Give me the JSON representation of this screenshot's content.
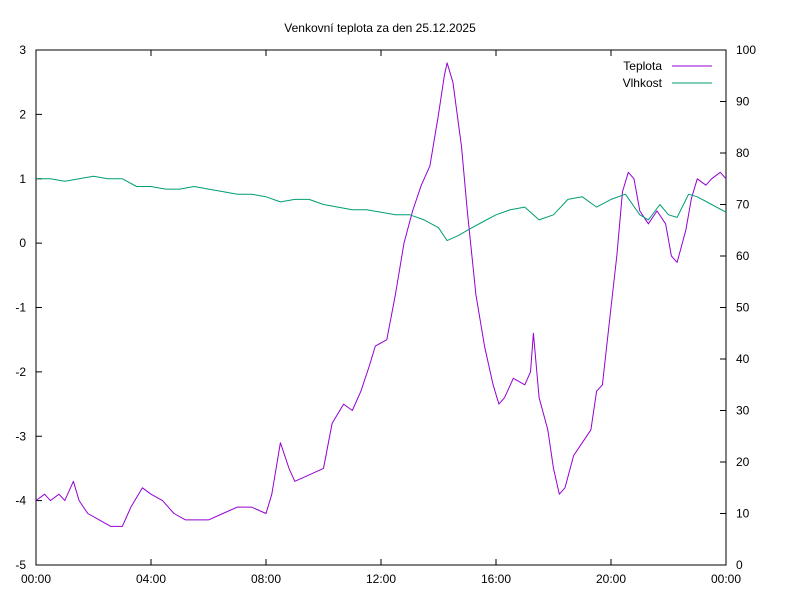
{
  "chart_data": {
    "type": "line",
    "title": "Venkovní teplota za den 25.12.2025",
    "x_ticks": [
      "00:00",
      "04:00",
      "08:00",
      "12:00",
      "16:00",
      "20:00",
      "00:00"
    ],
    "x_range_hours": [
      0,
      24
    ],
    "y_left": {
      "range": [
        -5,
        3
      ],
      "ticks": [
        "3",
        "2",
        "1",
        "0",
        "-1",
        "-2",
        "-3",
        "-4",
        "-5"
      ]
    },
    "y_right": {
      "range": [
        0,
        100
      ],
      "ticks": [
        "100",
        "90",
        "80",
        "70",
        "60",
        "50",
        "40",
        "30",
        "20",
        "10",
        "0"
      ]
    },
    "legend_position": "top-right",
    "grid": false,
    "series": [
      {
        "name": "Teplota",
        "axis": "left",
        "color": "#9400d3",
        "points": [
          [
            0.0,
            -4.0
          ],
          [
            0.3,
            -3.9
          ],
          [
            0.5,
            -4.0
          ],
          [
            0.8,
            -3.9
          ],
          [
            1.0,
            -4.0
          ],
          [
            1.3,
            -3.7
          ],
          [
            1.5,
            -4.0
          ],
          [
            1.8,
            -4.2
          ],
          [
            2.2,
            -4.3
          ],
          [
            2.6,
            -4.4
          ],
          [
            3.0,
            -4.4
          ],
          [
            3.3,
            -4.1
          ],
          [
            3.7,
            -3.8
          ],
          [
            4.0,
            -3.9
          ],
          [
            4.4,
            -4.0
          ],
          [
            4.8,
            -4.2
          ],
          [
            5.2,
            -4.3
          ],
          [
            5.6,
            -4.3
          ],
          [
            6.0,
            -4.3
          ],
          [
            6.5,
            -4.2
          ],
          [
            7.0,
            -4.1
          ],
          [
            7.5,
            -4.1
          ],
          [
            8.0,
            -4.2
          ],
          [
            8.2,
            -3.9
          ],
          [
            8.5,
            -3.1
          ],
          [
            8.8,
            -3.5
          ],
          [
            9.0,
            -3.7
          ],
          [
            9.5,
            -3.6
          ],
          [
            10.0,
            -3.5
          ],
          [
            10.3,
            -2.8
          ],
          [
            10.7,
            -2.5
          ],
          [
            11.0,
            -2.6
          ],
          [
            11.3,
            -2.3
          ],
          [
            11.6,
            -1.9
          ],
          [
            11.8,
            -1.6
          ],
          [
            12.2,
            -1.5
          ],
          [
            12.5,
            -0.8
          ],
          [
            12.8,
            0.0
          ],
          [
            13.1,
            0.5
          ],
          [
            13.4,
            0.9
          ],
          [
            13.7,
            1.2
          ],
          [
            14.0,
            2.0
          ],
          [
            14.2,
            2.6
          ],
          [
            14.3,
            2.8
          ],
          [
            14.5,
            2.5
          ],
          [
            14.8,
            1.5
          ],
          [
            15.0,
            0.5
          ],
          [
            15.3,
            -0.8
          ],
          [
            15.6,
            -1.6
          ],
          [
            15.9,
            -2.2
          ],
          [
            16.1,
            -2.5
          ],
          [
            16.3,
            -2.4
          ],
          [
            16.6,
            -2.1
          ],
          [
            17.0,
            -2.2
          ],
          [
            17.2,
            -2.0
          ],
          [
            17.3,
            -1.4
          ],
          [
            17.5,
            -2.4
          ],
          [
            17.8,
            -2.9
          ],
          [
            18.0,
            -3.5
          ],
          [
            18.2,
            -3.9
          ],
          [
            18.4,
            -3.8
          ],
          [
            18.7,
            -3.3
          ],
          [
            19.0,
            -3.1
          ],
          [
            19.3,
            -2.9
          ],
          [
            19.5,
            -2.3
          ],
          [
            19.7,
            -2.2
          ],
          [
            20.0,
            -1.0
          ],
          [
            20.2,
            -0.2
          ],
          [
            20.4,
            0.8
          ],
          [
            20.6,
            1.1
          ],
          [
            20.8,
            1.0
          ],
          [
            21.0,
            0.5
          ],
          [
            21.3,
            0.3
          ],
          [
            21.6,
            0.5
          ],
          [
            21.9,
            0.3
          ],
          [
            22.1,
            -0.2
          ],
          [
            22.3,
            -0.3
          ],
          [
            22.6,
            0.2
          ],
          [
            22.8,
            0.7
          ],
          [
            23.0,
            1.0
          ],
          [
            23.3,
            0.9
          ],
          [
            23.5,
            1.0
          ],
          [
            23.8,
            1.1
          ],
          [
            24.0,
            1.0
          ]
        ]
      },
      {
        "name": "Vlhkost",
        "axis": "right",
        "color": "#009e73",
        "points": [
          [
            0.0,
            75
          ],
          [
            0.5,
            75
          ],
          [
            1.0,
            74.5
          ],
          [
            1.5,
            75
          ],
          [
            2.0,
            75.5
          ],
          [
            2.5,
            75
          ],
          [
            3.0,
            75
          ],
          [
            3.5,
            73.5
          ],
          [
            4.0,
            73.5
          ],
          [
            4.5,
            73
          ],
          [
            5.0,
            73
          ],
          [
            5.5,
            73.5
          ],
          [
            6.0,
            73
          ],
          [
            6.5,
            72.5
          ],
          [
            7.0,
            72
          ],
          [
            7.5,
            72
          ],
          [
            8.0,
            71.5
          ],
          [
            8.5,
            70.5
          ],
          [
            9.0,
            71
          ],
          [
            9.5,
            71
          ],
          [
            10.0,
            70
          ],
          [
            10.5,
            69.5
          ],
          [
            11.0,
            69
          ],
          [
            11.5,
            69
          ],
          [
            12.0,
            68.5
          ],
          [
            12.5,
            68
          ],
          [
            13.0,
            68
          ],
          [
            13.5,
            67
          ],
          [
            14.0,
            65.5
          ],
          [
            14.3,
            63
          ],
          [
            14.7,
            64
          ],
          [
            15.0,
            65
          ],
          [
            15.5,
            66.5
          ],
          [
            16.0,
            68
          ],
          [
            16.5,
            69
          ],
          [
            17.0,
            69.5
          ],
          [
            17.5,
            67
          ],
          [
            18.0,
            68
          ],
          [
            18.5,
            71
          ],
          [
            19.0,
            71.5
          ],
          [
            19.5,
            69.5
          ],
          [
            20.0,
            71
          ],
          [
            20.5,
            72
          ],
          [
            21.0,
            68
          ],
          [
            21.3,
            67
          ],
          [
            21.7,
            70
          ],
          [
            22.0,
            68
          ],
          [
            22.3,
            67.5
          ],
          [
            22.7,
            72
          ],
          [
            23.0,
            71.5
          ],
          [
            23.5,
            70
          ],
          [
            24.0,
            68.5
          ]
        ]
      }
    ]
  }
}
